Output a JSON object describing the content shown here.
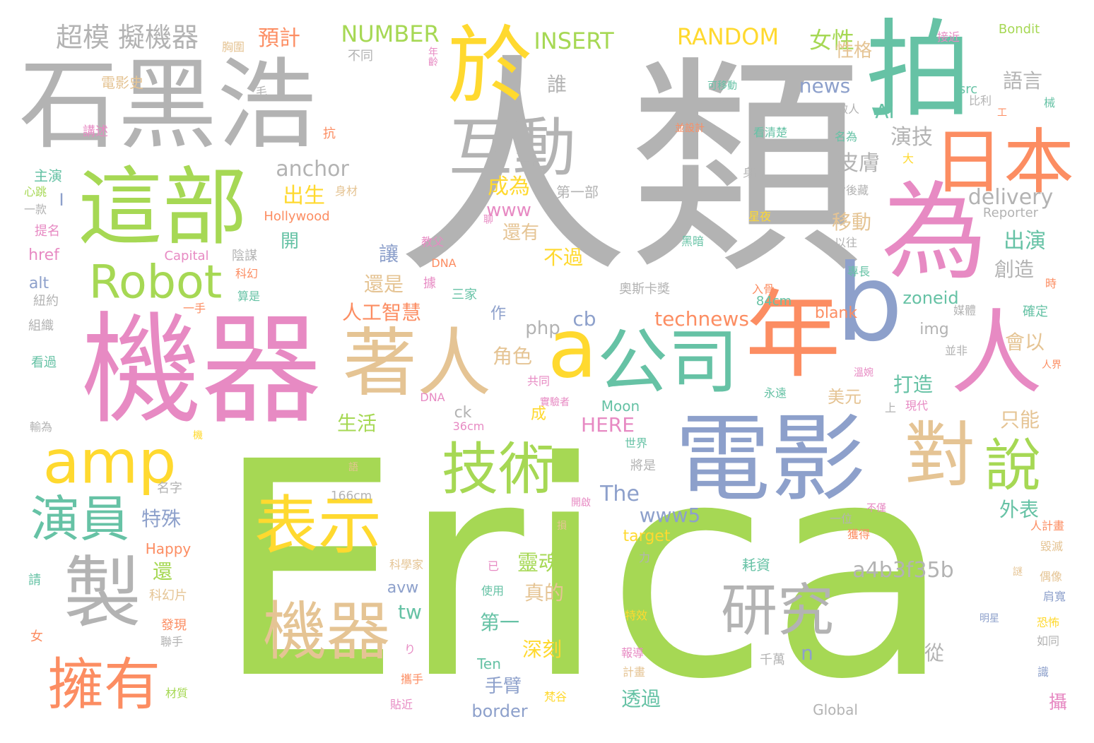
{
  "palette": {
    "gray": "#b3b3b3",
    "green": "#a6d854",
    "pink": "#e78ac3",
    "blue": "#8da0cb",
    "teal": "#66c2a5",
    "orange": "#fc8d62",
    "yellow": "#ffd92f",
    "tan": "#e5c494"
  },
  "words": [
    {
      "text": "人類",
      "color": "gray"
    },
    {
      "text": "Erica",
      "color": "green"
    },
    {
      "text": "機器",
      "color": "pink"
    },
    {
      "text": "石黑浩",
      "color": "gray"
    },
    {
      "text": "這部",
      "color": "green"
    },
    {
      "text": "拍",
      "color": "teal"
    },
    {
      "text": "為",
      "color": "pink"
    },
    {
      "text": "於",
      "color": "yellow"
    },
    {
      "text": "日本",
      "color": "orange"
    },
    {
      "text": "互動",
      "color": "gray"
    },
    {
      "text": "電影",
      "color": "blue"
    },
    {
      "text": "年",
      "color": "orange"
    },
    {
      "text": "人",
      "color": "pink"
    },
    {
      "text": "b",
      "color": "blue"
    },
    {
      "text": "a",
      "color": "yellow"
    },
    {
      "text": "公司",
      "color": "teal"
    },
    {
      "text": "著人",
      "color": "tan"
    },
    {
      "text": "對",
      "color": "tan"
    },
    {
      "text": "說",
      "color": "green"
    },
    {
      "text": "技術",
      "color": "green"
    },
    {
      "text": "amp",
      "color": "yellow"
    },
    {
      "text": "Robot",
      "color": "green"
    },
    {
      "text": "表示",
      "color": "yellow"
    },
    {
      "text": "演員",
      "color": "teal"
    },
    {
      "text": "製",
      "color": "gray"
    },
    {
      "text": "機器",
      "color": "tan"
    },
    {
      "text": "研究",
      "color": "gray"
    },
    {
      "text": "擁有",
      "color": "orange"
    },
    {
      "text": "超模 擬機器",
      "color": "gray"
    },
    {
      "text": "預計",
      "color": "orange"
    },
    {
      "text": "NUMBER",
      "color": "green"
    },
    {
      "text": "INSERT",
      "color": "green"
    },
    {
      "text": "RANDOM",
      "color": "yellow"
    },
    {
      "text": "女性",
      "color": "green"
    },
    {
      "text": "性格",
      "color": "tan"
    },
    {
      "text": "語言",
      "color": "gray"
    },
    {
      "text": "news",
      "color": "blue"
    },
    {
      "text": "AI",
      "color": "teal"
    },
    {
      "text": "演技",
      "color": "gray"
    },
    {
      "text": "皮膚",
      "color": "gray"
    },
    {
      "text": "anchor",
      "color": "gray"
    },
    {
      "text": "delivery",
      "color": "gray"
    },
    {
      "text": "出生",
      "color": "yellow"
    },
    {
      "text": "成為",
      "color": "yellow"
    },
    {
      "text": "www",
      "color": "pink"
    },
    {
      "text": "移動",
      "color": "tan"
    },
    {
      "text": "出演",
      "color": "teal"
    },
    {
      "text": "創造",
      "color": "gray"
    },
    {
      "text": "還有",
      "color": "tan"
    },
    {
      "text": "不過",
      "color": "yellow"
    },
    {
      "text": "讓",
      "color": "blue"
    },
    {
      "text": "還是",
      "color": "tan"
    },
    {
      "text": "人工智慧",
      "color": "orange"
    },
    {
      "text": "technews",
      "color": "orange"
    },
    {
      "text": "cb",
      "color": "blue"
    },
    {
      "text": "php",
      "color": "gray"
    },
    {
      "text": "zoneid",
      "color": "teal"
    },
    {
      "text": "img",
      "color": "gray"
    },
    {
      "text": "會以",
      "color": "tan"
    },
    {
      "text": "角色",
      "color": "tan"
    },
    {
      "text": "打造",
      "color": "teal"
    },
    {
      "text": "美元",
      "color": "tan"
    },
    {
      "text": "生活",
      "color": "green"
    },
    {
      "text": "HERE",
      "color": "pink"
    },
    {
      "text": "只能",
      "color": "tan"
    },
    {
      "text": "The",
      "color": "blue"
    },
    {
      "text": "www5",
      "color": "blue"
    },
    {
      "text": "外表",
      "color": "teal"
    },
    {
      "text": "特殊",
      "color": "blue"
    },
    {
      "text": "a4b3f35b",
      "color": "gray"
    },
    {
      "text": "靈魂",
      "color": "green"
    },
    {
      "text": "真的",
      "color": "tan"
    },
    {
      "text": "tw",
      "color": "teal"
    },
    {
      "text": "avw",
      "color": "blue"
    },
    {
      "text": "第一",
      "color": "teal"
    },
    {
      "text": "深刻",
      "color": "yellow"
    },
    {
      "text": "手臂",
      "color": "blue"
    },
    {
      "text": "透過",
      "color": "teal"
    },
    {
      "text": "從",
      "color": "gray"
    },
    {
      "text": "n",
      "color": "blue"
    },
    {
      "text": "border",
      "color": "blue"
    },
    {
      "text": "Global",
      "color": "gray"
    },
    {
      "text": "攝",
      "color": "pink"
    },
    {
      "text": "還",
      "color": "green"
    },
    {
      "text": "電影史",
      "color": "tan"
    },
    {
      "text": "講述",
      "color": "pink"
    },
    {
      "text": "主演",
      "color": "teal"
    },
    {
      "text": "Hollywood",
      "color": "orange"
    },
    {
      "text": "Capital",
      "color": "pink"
    },
    {
      "text": "href",
      "color": "pink"
    },
    {
      "text": "alt",
      "color": "blue"
    },
    {
      "text": "Happy",
      "color": "orange"
    },
    {
      "text": "科幻片",
      "color": "tan"
    },
    {
      "text": "發現",
      "color": "orange"
    },
    {
      "text": "166cm",
      "color": "gray"
    },
    {
      "text": "36cm",
      "color": "pink"
    },
    {
      "text": "84cm",
      "color": "teal"
    },
    {
      "text": "Moon",
      "color": "teal"
    },
    {
      "text": "Ten",
      "color": "teal"
    },
    {
      "text": "blank",
      "color": "orange"
    },
    {
      "text": "target",
      "color": "yellow"
    },
    {
      "text": "Bondit",
      "color": "green"
    },
    {
      "text": "Reporter",
      "color": "gray"
    },
    {
      "text": "src",
      "color": "teal"
    },
    {
      "text": "ck",
      "color": "gray"
    },
    {
      "text": "DNA",
      "color": "orange"
    },
    {
      "text": "DNA",
      "color": "pink"
    },
    {
      "text": "組織",
      "color": "gray"
    },
    {
      "text": "紐約",
      "color": "gray"
    },
    {
      "text": "看過",
      "color": "teal"
    },
    {
      "text": "不同",
      "color": "gray"
    },
    {
      "text": "誰",
      "color": "gray"
    },
    {
      "text": "年齡",
      "color": "pink"
    },
    {
      "text": "第一部",
      "color": "gray"
    },
    {
      "text": "陰謀",
      "color": "gray"
    },
    {
      "text": "科幻",
      "color": "orange"
    },
    {
      "text": "算是",
      "color": "teal"
    },
    {
      "text": "教父",
      "color": "pink"
    },
    {
      "text": "三家",
      "color": "teal"
    },
    {
      "text": "奧斯卡獎",
      "color": "gray"
    },
    {
      "text": "黑暗",
      "color": "teal"
    },
    {
      "text": "身高",
      "color": "gray"
    },
    {
      "text": "星夜",
      "color": "yellow"
    },
    {
      "text": "看清楚",
      "color": "teal"
    },
    {
      "text": "以往",
      "color": "gray"
    },
    {
      "text": "專長",
      "color": "teal"
    },
    {
      "text": "入骨",
      "color": "orange"
    },
    {
      "text": "媒體",
      "color": "gray"
    },
    {
      "text": "確定",
      "color": "teal"
    },
    {
      "text": "人界",
      "color": "orange"
    },
    {
      "text": "並非",
      "color": "gray"
    },
    {
      "text": "耗資",
      "color": "teal"
    },
    {
      "text": "千萬",
      "color": "gray"
    },
    {
      "text": "將是",
      "color": "gray"
    },
    {
      "text": "世界",
      "color": "teal"
    },
    {
      "text": "獲得",
      "color": "orange"
    },
    {
      "text": "不僅",
      "color": "pink"
    },
    {
      "text": "一位",
      "color": "gray"
    },
    {
      "text": "人計畫",
      "color": "orange"
    },
    {
      "text": "毀滅",
      "color": "tan"
    },
    {
      "text": "偶像",
      "color": "tan"
    },
    {
      "text": "肩寬",
      "color": "blue"
    },
    {
      "text": "恐怖",
      "color": "yellow"
    },
    {
      "text": "如同",
      "color": "gray"
    },
    {
      "text": "明星",
      "color": "blue"
    },
    {
      "text": "識",
      "color": "blue"
    },
    {
      "text": "謎",
      "color": "tan"
    },
    {
      "text": "報導",
      "color": "pink"
    },
    {
      "text": "計畫",
      "color": "tan"
    },
    {
      "text": "梵谷",
      "color": "yellow"
    },
    {
      "text": "貼近",
      "color": "pink"
    },
    {
      "text": "攜手",
      "color": "orange"
    },
    {
      "text": "聯手",
      "color": "gray"
    },
    {
      "text": "材質",
      "color": "green"
    },
    {
      "text": "女",
      "color": "orange"
    },
    {
      "text": "請",
      "color": "teal"
    },
    {
      "text": "輸為",
      "color": "gray"
    },
    {
      "text": "名字",
      "color": "gray"
    },
    {
      "text": "一款",
      "color": "gray"
    },
    {
      "text": "心跳",
      "color": "green"
    },
    {
      "text": "提名",
      "color": "pink"
    },
    {
      "text": "身材",
      "color": "tan"
    },
    {
      "text": "一手",
      "color": "orange"
    },
    {
      "text": "抗",
      "color": "orange"
    },
    {
      "text": "胸圍",
      "color": "tan"
    },
    {
      "text": "毛",
      "color": "gray"
    },
    {
      "text": "可移動",
      "color": "teal"
    },
    {
      "text": "並設計",
      "color": "orange"
    },
    {
      "text": "接近",
      "color": "pink"
    },
    {
      "text": "比利",
      "color": "gray"
    },
    {
      "text": "做人",
      "color": "gray"
    },
    {
      "text": "名為",
      "color": "teal"
    },
    {
      "text": "背後藏",
      "color": "gray"
    },
    {
      "text": "大",
      "color": "yellow"
    },
    {
      "text": "工",
      "color": "orange"
    },
    {
      "text": "械",
      "color": "teal"
    },
    {
      "text": "時",
      "color": "orange"
    },
    {
      "text": "聊",
      "color": "pink"
    },
    {
      "text": "現代",
      "color": "pink"
    },
    {
      "text": "永遠",
      "color": "teal"
    },
    {
      "text": "溫婉",
      "color": "pink"
    },
    {
      "text": "上",
      "color": "gray"
    },
    {
      "text": "實驗者",
      "color": "pink"
    },
    {
      "text": "成",
      "color": "yellow"
    },
    {
      "text": "共同",
      "color": "pink"
    },
    {
      "text": "據",
      "color": "pink"
    },
    {
      "text": "作",
      "color": "blue"
    },
    {
      "text": "已",
      "color": "pink"
    },
    {
      "text": "使用",
      "color": "teal"
    },
    {
      "text": "科學家",
      "color": "tan"
    },
    {
      "text": "力",
      "color": "gray"
    },
    {
      "text": "特效",
      "color": "yellow"
    },
    {
      "text": "り",
      "color": "pink"
    },
    {
      "text": "開啟",
      "color": "pink"
    },
    {
      "text": "機",
      "color": "yellow"
    },
    {
      "text": "語",
      "color": "tan"
    },
    {
      "text": "I",
      "color": "blue"
    },
    {
      "text": "開",
      "color": "teal"
    },
    {
      "text": "損",
      "color": "tan"
    }
  ]
}
